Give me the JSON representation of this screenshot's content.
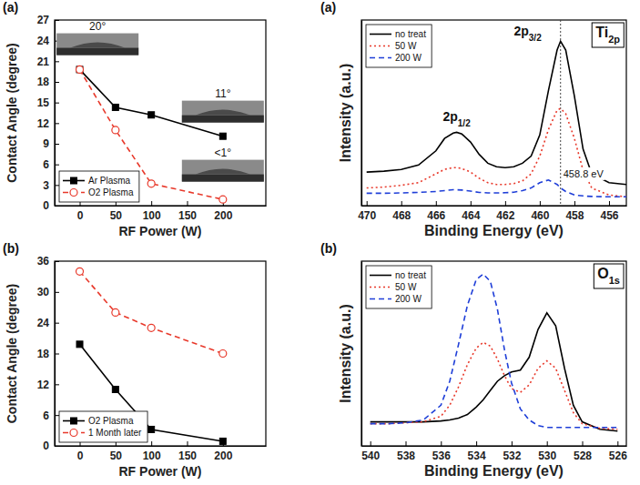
{
  "chart_data": [
    {
      "type": "line",
      "panel_label": "(a)",
      "x_label": "RF Power (W)",
      "y_label": "Contact Angle (degree)",
      "x": [
        0,
        50,
        100,
        200
      ],
      "xlim": [
        -35,
        260
      ],
      "xticks": [
        0,
        50,
        100,
        150,
        200
      ],
      "ylim": [
        0,
        27
      ],
      "yticks": [
        0,
        3,
        6,
        9,
        12,
        15,
        18,
        21,
        24,
        27
      ],
      "legend": "lower left",
      "series": [
        {
          "name": "Ar Plasma",
          "color": "#000000",
          "marker": "square",
          "line_style": "solid",
          "values": [
            19.8,
            14.3,
            13.2,
            10.1
          ]
        },
        {
          "name": "O2 Plasma",
          "color": "#e8392b",
          "marker": "circle",
          "line_style": "dashed",
          "values": [
            19.8,
            11,
            3.2,
            0.9
          ]
        }
      ],
      "annotations": [
        {
          "type": "image_label",
          "text": "20°",
          "x": 25,
          "y": 25.6
        },
        {
          "type": "image_label",
          "text": "11°",
          "x": 200,
          "y": 15.8
        },
        {
          "type": "image_label",
          "text": "<1°",
          "x": 200,
          "y": 7.2
        }
      ]
    },
    {
      "type": "line",
      "panel_label": "(b)",
      "x_label": "RF Power (W)",
      "y_label": "Contact Angle (degree)",
      "x": [
        0,
        50,
        100,
        200
      ],
      "xlim": [
        -35,
        260
      ],
      "xticks": [
        0,
        50,
        100,
        150,
        200
      ],
      "ylim": [
        0,
        36
      ],
      "yticks": [
        0,
        6,
        12,
        18,
        24,
        30,
        36
      ],
      "legend": "lower left",
      "series": [
        {
          "name": "O2 Plasma",
          "color": "#000000",
          "marker": "square",
          "line_style": "solid",
          "values": [
            19.8,
            11,
            3.2,
            0.9
          ]
        },
        {
          "name": "1 Month later",
          "color": "#e8392b",
          "marker": "circle",
          "line_style": "dashed",
          "values": [
            34,
            26,
            23,
            18
          ]
        }
      ]
    },
    {
      "type": "line",
      "panel_label": "(a)",
      "title": {
        "text": "Ti",
        "sub": "2p"
      },
      "x_label": "Binding Energy (eV)",
      "y_label": "Intensity (a.u.)",
      "x": [
        470,
        469,
        468,
        467,
        466,
        465.5,
        465,
        464.8,
        464.5,
        464,
        463.5,
        463,
        462.5,
        462,
        461.5,
        461,
        460.5,
        460,
        459.5,
        459,
        458.8,
        458.5,
        458,
        457.5,
        457,
        456,
        455
      ],
      "xlim": [
        470.3,
        455
      ],
      "xticks": [
        470,
        468,
        466,
        464,
        462,
        460,
        458,
        456
      ],
      "ylim": [
        0,
        105
      ],
      "tick_labels": "x",
      "legend": "upper left",
      "series": [
        {
          "name": "no treat",
          "color": "#000000",
          "line_style": "solid",
          "values": [
            19,
            19.5,
            20.5,
            23,
            31,
            38,
            41,
            41.5,
            40.5,
            36,
            29,
            24,
            22,
            21.5,
            22,
            24,
            28,
            40,
            65,
            88,
            93,
            88,
            62,
            32,
            18,
            13,
            12
          ]
        },
        {
          "name": "50 W",
          "color": "#e8392b",
          "line_style": "dotted",
          "values": [
            10,
            10.5,
            11.5,
            13,
            18,
            20.5,
            21.5,
            21.5,
            21,
            19,
            15.5,
            13,
            12,
            12,
            12.5,
            14,
            18,
            28,
            43,
            54,
            55,
            52,
            38,
            20,
            10,
            6,
            5
          ]
        },
        {
          "name": "200 W",
          "color": "#1f3fd8",
          "line_style": "dashed",
          "values": [
            7,
            7,
            7.2,
            7.5,
            8,
            8.5,
            9,
            9,
            8.8,
            8.2,
            7.5,
            7.2,
            7.2,
            7.3,
            7.6,
            8.5,
            10,
            13,
            14.5,
            12,
            10,
            8,
            6,
            5.5,
            5.2,
            5,
            5
          ]
        }
      ],
      "annotations": [
        {
          "type": "text",
          "text": "2p",
          "sub": "3/2",
          "x": 460.7,
          "y": 96
        },
        {
          "type": "text",
          "text": "2p",
          "sub": "1/2",
          "x": 464.8,
          "y": 48
        },
        {
          "type": "vline",
          "x": 458.8,
          "y": 16,
          "text": "458.8 eV"
        }
      ]
    },
    {
      "type": "line",
      "panel_label": "(b)",
      "title": {
        "text": "O",
        "sub": "1s"
      },
      "x_label": "Binding Energy (eV)",
      "y_label": "Intensity (a.u.)",
      "x": [
        540,
        539,
        538,
        537,
        536,
        535.5,
        535,
        534.5,
        534,
        533.6,
        533.2,
        532.8,
        532.4,
        532,
        531.5,
        531,
        530.5,
        530,
        529.5,
        529,
        528.5,
        528,
        527,
        526
      ],
      "xlim": [
        540.5,
        525.5
      ],
      "xticks": [
        540,
        538,
        536,
        534,
        532,
        530,
        528,
        526
      ],
      "ylim": [
        0,
        100
      ],
      "tick_labels": "x",
      "legend": "upper left",
      "series": [
        {
          "name": "no treat",
          "color": "#000000",
          "line_style": "solid",
          "values": [
            13,
            13,
            13,
            13,
            13.5,
            14,
            15,
            17,
            21,
            25,
            30,
            35,
            38,
            40,
            41,
            48,
            63,
            72,
            65,
            42,
            22,
            13,
            9,
            8
          ]
        },
        {
          "name": "50 W",
          "color": "#e8392b",
          "line_style": "dotted",
          "values": [
            12,
            12,
            12.5,
            13,
            16,
            22,
            32,
            44,
            53,
            56,
            54,
            47,
            38,
            31,
            29,
            33,
            42,
            46,
            42,
            30,
            18,
            12,
            9.5,
            9
          ]
        },
        {
          "name": "200 W",
          "color": "#1f3fd8",
          "line_style": "dashed",
          "values": [
            12,
            12,
            12.5,
            14,
            22,
            35,
            55,
            76,
            90,
            93,
            89,
            74,
            52,
            34,
            20,
            14,
            11,
            10,
            10,
            10,
            10,
            10,
            10,
            10
          ]
        }
      ]
    }
  ]
}
